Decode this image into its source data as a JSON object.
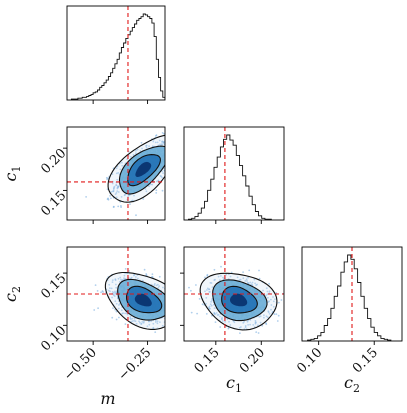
{
  "chart_data": {
    "type": "corner",
    "parameters": [
      {
        "key": "m",
        "label": "m",
        "lim": [
          -0.62,
          -0.17
        ],
        "ticks": [
          -0.5,
          -0.25
        ],
        "tick_labels": [
          "−0.50",
          "−0.25"
        ],
        "truth": -0.34
      },
      {
        "key": "c1",
        "label": "c",
        "sub": "1",
        "lim": [
          0.115,
          0.225
        ],
        "ticks": [
          0.15,
          0.2
        ],
        "tick_labels": [
          "0.15",
          "0.20"
        ],
        "truth": 0.16
      },
      {
        "key": "c2",
        "label": "c",
        "sub": "2",
        "lim": [
          0.085,
          0.175
        ],
        "ticks": [
          0.1,
          0.15
        ],
        "tick_labels": [
          "0.10",
          "0.15"
        ],
        "truth": 0.13
      }
    ],
    "marginals": {
      "m": {
        "bin_edges_start": -0.6,
        "bin_width": 0.01,
        "counts": [
          1,
          1,
          1,
          2,
          2,
          3,
          3,
          4,
          5,
          6,
          8,
          9,
          11,
          14,
          16,
          19,
          22,
          26,
          30,
          35,
          40,
          45,
          52,
          58,
          63,
          68,
          72,
          76,
          80,
          84,
          88,
          90,
          92,
          95,
          94,
          92,
          90,
          85,
          70,
          45,
          25,
          10,
          3,
          1
        ]
      },
      "c1": {
        "bin_edges_start": 0.12,
        "bin_width": 0.0035,
        "counts": [
          1,
          2,
          4,
          8,
          14,
          22,
          35,
          48,
          62,
          74,
          86,
          95,
          100,
          94,
          88,
          76,
          64,
          52,
          40,
          28,
          18,
          10,
          5,
          2,
          1,
          1
        ]
      },
      "c2": {
        "bin_edges_start": 0.09,
        "bin_width": 0.003,
        "counts": [
          1,
          2,
          3,
          6,
          10,
          18,
          26,
          38,
          52,
          64,
          80,
          92,
          100,
          95,
          84,
          68,
          52,
          38,
          26,
          16,
          10,
          6,
          3,
          2,
          1
        ]
      }
    },
    "joint": [
      {
        "x": "m",
        "y": "c1",
        "center": [
          -0.27,
          0.175
        ],
        "sigma": [
          0.065,
          0.016
        ],
        "rho": 0.6
      },
      {
        "x": "m",
        "y": "c2",
        "center": [
          -0.27,
          0.124
        ],
        "sigma": [
          0.07,
          0.011
        ],
        "rho": -0.35
      },
      {
        "x": "c1",
        "y": "c2",
        "center": [
          0.175,
          0.124
        ],
        "sigma": [
          0.017,
          0.011
        ],
        "rho": -0.2
      }
    ],
    "grid": false,
    "colors": {
      "truth": "#e01818",
      "points": "#6fa8dc",
      "fill_levels": [
        "#c6dbef",
        "#6baed6",
        "#2171b5",
        "#08306b"
      ]
    }
  }
}
